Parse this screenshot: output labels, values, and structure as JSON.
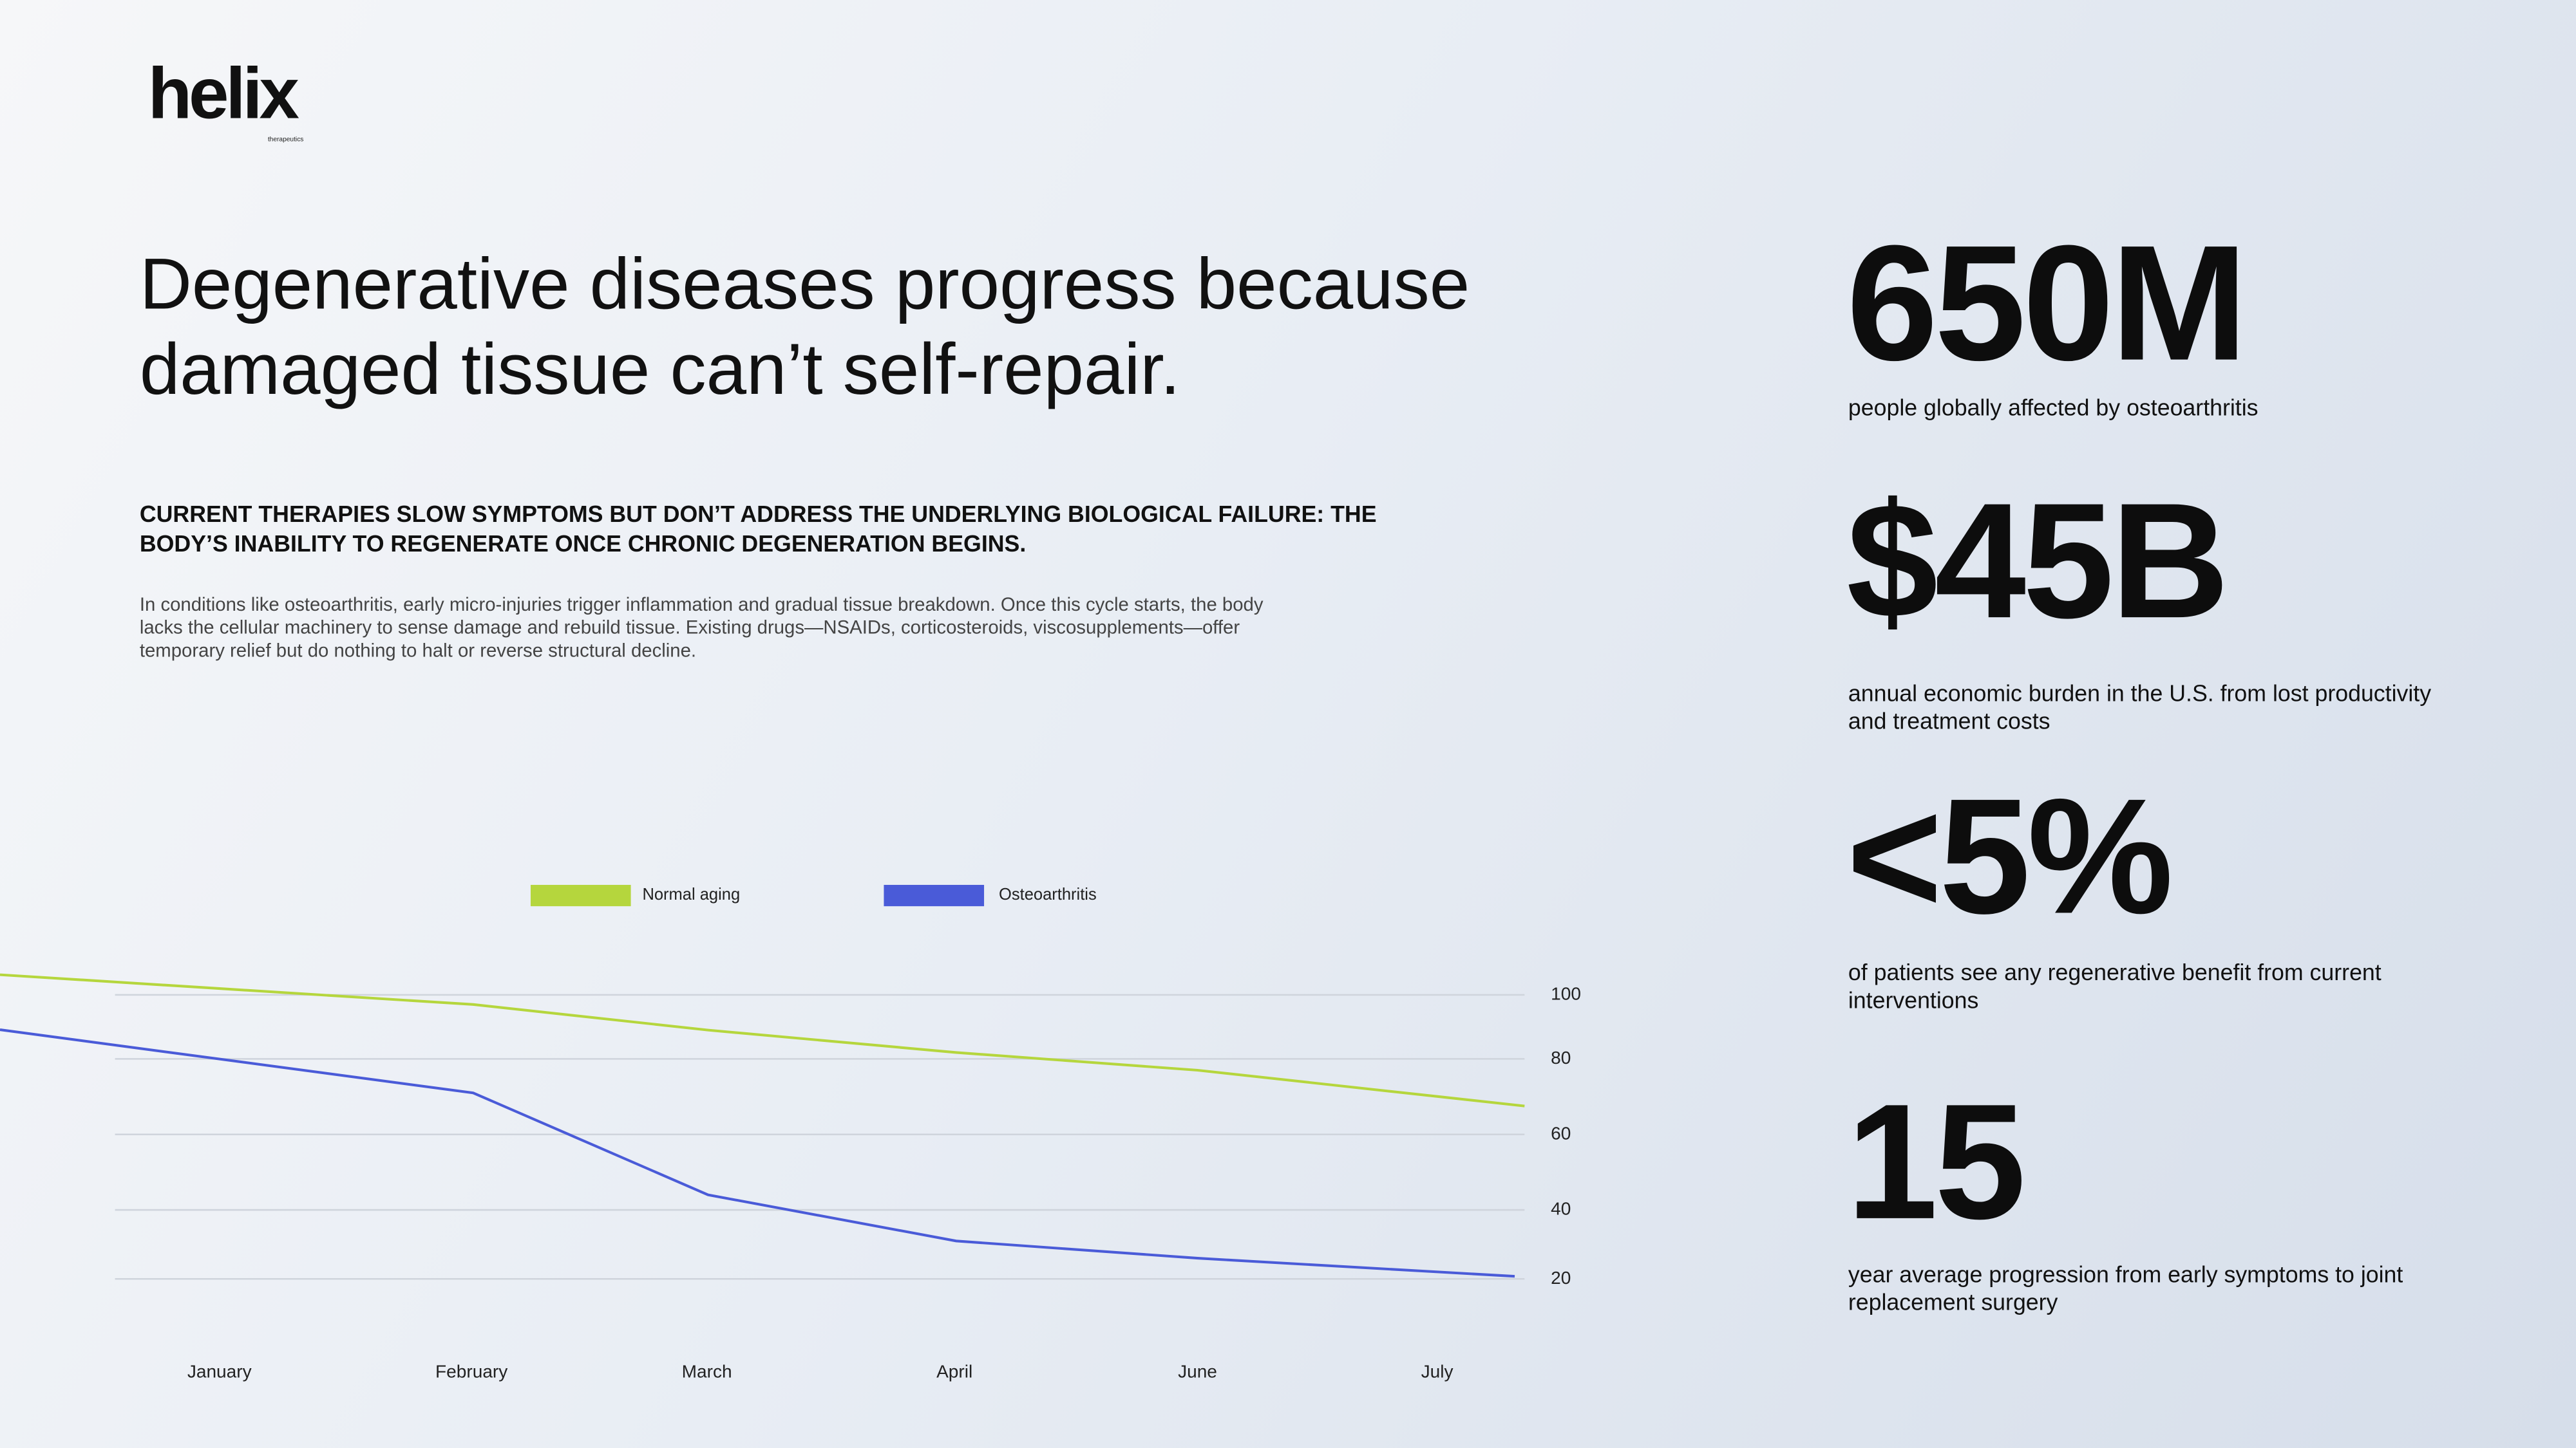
{
  "brand": {
    "name": "helix",
    "tagline": "therapeutics"
  },
  "title": "Degenerative diseases progress because damaged tissue can’t self-repair.",
  "subheading": "Current therapies slow symptoms but don’t address the underlying biological failure: the body’s inability to regenerate once chronic degeneration begins.",
  "body": "In conditions like osteoarthritis, early micro-injuries trigger inflammation and gradual tissue breakdown. Once this cycle starts, the body lacks the cellular machinery to sense damage and rebuild tissue. Existing drugs—NSAIDs, corticosteroids, viscosupplements—offer temporary relief but do nothing to halt or reverse structural decline.",
  "stats": [
    {
      "value": "650M",
      "label": "people globally affected by osteoarthritis"
    },
    {
      "value": "$45B",
      "label": "annual economic burden in the U.S. from lost productivity and treatment costs"
    },
    {
      "value": "<5%",
      "label": "of patients see any regenerative benefit from current interventions"
    },
    {
      "value": "15",
      "label": "year average progression from early symptoms to joint replacement surgery"
    }
  ],
  "chart_data": {
    "type": "line",
    "categories": [
      "January",
      "February",
      "March",
      "April",
      "June",
      "July"
    ],
    "y_ticks": [
      "100",
      "80",
      "60",
      "40",
      "20"
    ],
    "y_axis_position": "right",
    "grid": true,
    "legend_position": "top",
    "series": [
      {
        "name": "Normal aging",
        "color": "#b5d63d",
        "values": [
          102,
          97,
          89,
          82,
          77,
          70
        ]
      },
      {
        "name": "Osteoarthritis",
        "color": "#4a5bd8",
        "values": [
          80,
          71,
          44,
          31,
          26,
          22
        ]
      }
    ]
  }
}
